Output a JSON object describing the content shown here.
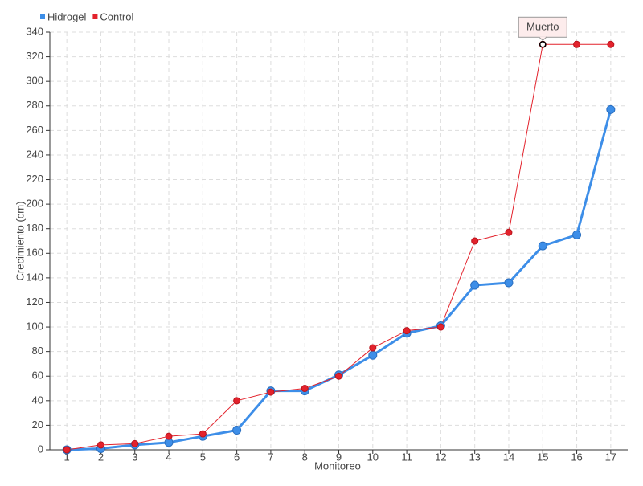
{
  "chart_data": {
    "type": "line",
    "x_label": "Monitoreo",
    "y_label": "Crecimiento (cm)",
    "categories": [
      "1",
      "2",
      "3",
      "4",
      "5",
      "6",
      "7",
      "8",
      "9",
      "10",
      "11",
      "12",
      "13",
      "14",
      "15",
      "16",
      "17"
    ],
    "series": [
      {
        "name": "Hidrogel",
        "color": "#3d8ee8",
        "values": [
          0,
          1,
          4,
          6,
          11,
          16,
          48,
          48,
          61,
          77,
          95,
          101,
          134,
          136,
          166,
          175,
          277
        ]
      },
      {
        "name": "Control",
        "color": "#e3222c",
        "values": [
          0,
          4,
          5,
          11,
          13,
          40,
          47,
          50,
          60,
          83,
          97,
          100,
          170,
          177,
          330,
          330,
          330
        ]
      }
    ],
    "annotation": {
      "text": "Muerto",
      "series": "Control",
      "x": "15"
    },
    "ylim": [
      0,
      340
    ],
    "yticks": [
      0,
      20,
      40,
      60,
      80,
      100,
      120,
      140,
      160,
      180,
      200,
      220,
      240,
      260,
      280,
      300,
      320,
      340
    ],
    "grid": true,
    "legend": "top-left"
  }
}
